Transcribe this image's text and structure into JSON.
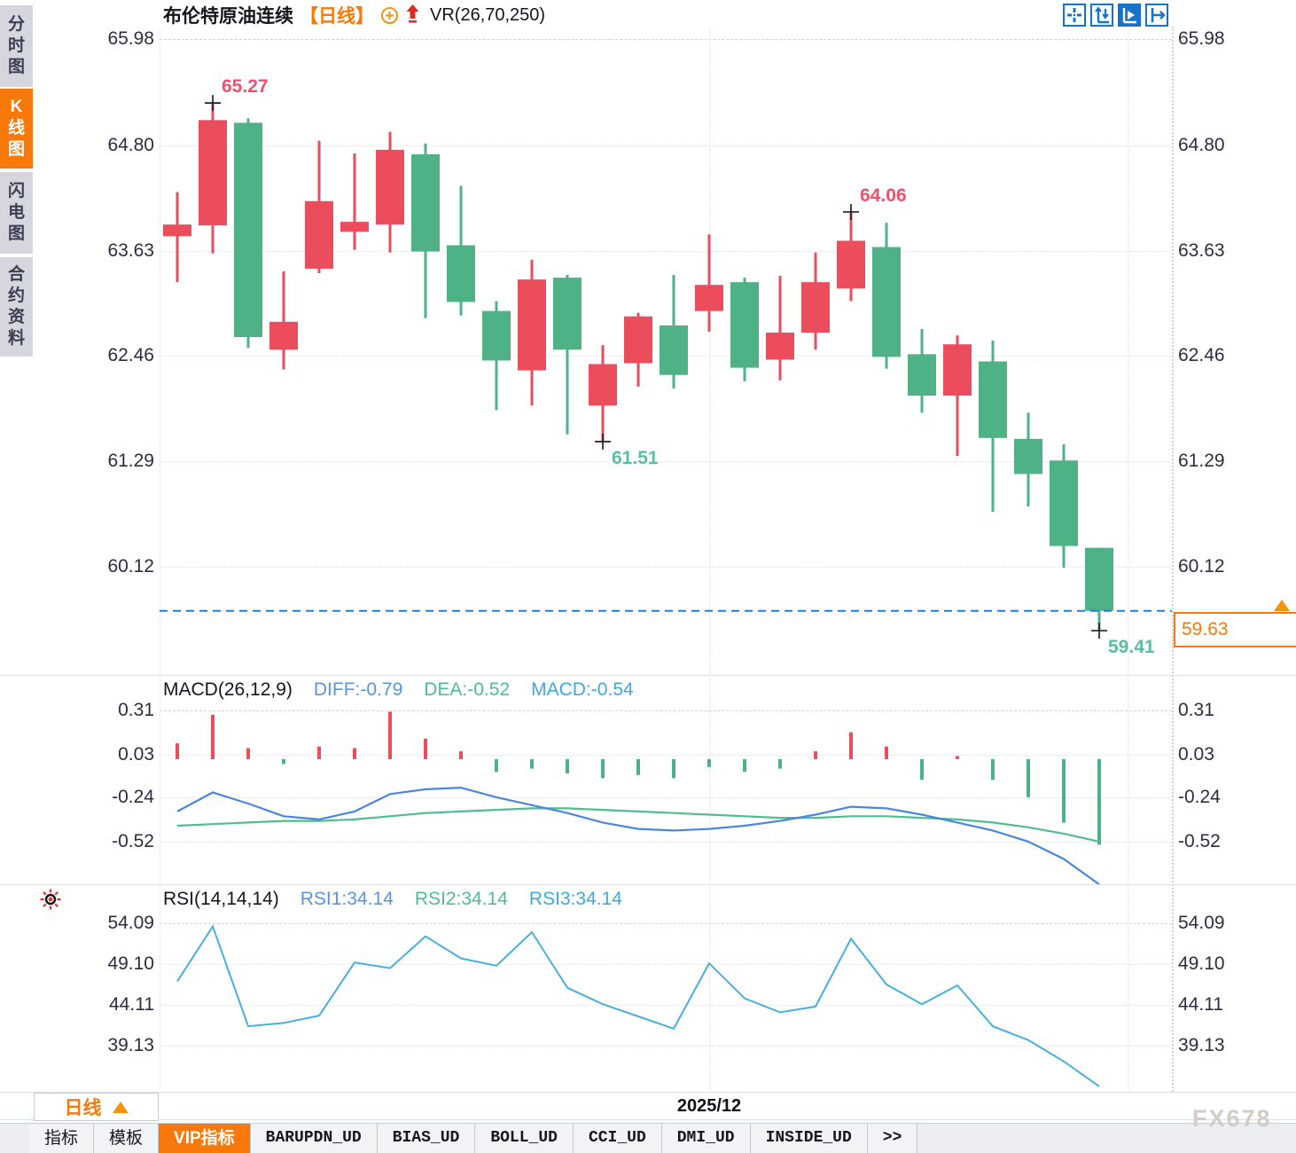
{
  "colors": {
    "up": "#ec4d5d",
    "down": "#4fb286",
    "accent": "#f8790a",
    "diff_blue": "#4a86e0",
    "dea_green": "#4fbe8c",
    "rsi_cyan": "#45b0e0",
    "price_line": "#1e7ce8",
    "anno_up": "#f0506c",
    "anno_down": "#55c0a4",
    "axis_text": "#2c2c42"
  },
  "sidebar": {
    "items": [
      {
        "label": "分时图",
        "active": false
      },
      {
        "label": "K线图",
        "active": true
      },
      {
        "label": "闪电图",
        "active": false
      },
      {
        "label": "合约资料",
        "active": false
      }
    ]
  },
  "header": {
    "symbol": "布伦特原油连续",
    "period_tag": "【日线】",
    "vr_label": "VR(26,70,250)"
  },
  "price_line": {
    "value": 59.63,
    "label": "59.63"
  },
  "annotations": [
    {
      "text": "65.27",
      "candle": 1,
      "price": 65.27,
      "placement": "above",
      "tone": "up"
    },
    {
      "text": "61.51",
      "candle": 12,
      "price": 61.51,
      "placement": "below",
      "tone": "down"
    },
    {
      "text": "64.06",
      "candle": 19,
      "price": 64.06,
      "placement": "above",
      "tone": "up"
    },
    {
      "text": "59.41",
      "candle": 26,
      "price": 59.41,
      "placement": "below",
      "tone": "down"
    }
  ],
  "macd_panel": {
    "title": "MACD(26,12,9)",
    "diff_label": "DIFF:-0.79",
    "dea_label": "DEA:-0.52",
    "macd_label": "MACD:-0.54"
  },
  "rsi_panel": {
    "title": "RSI(14,14,14)",
    "rsi1_label": "RSI1:34.14",
    "rsi2_label": "RSI2:34.14",
    "rsi3_label": "RSI3:34.14"
  },
  "footer": {
    "period_selector": "日线",
    "date_tick": "2025/12",
    "watermark": "FX678"
  },
  "bottom_tabs": [
    {
      "label": "指标",
      "active": false,
      "mono": false
    },
    {
      "label": "模板",
      "active": false,
      "mono": false
    },
    {
      "label": "VIP指标",
      "active": true,
      "mono": false
    },
    {
      "label": "BARUPDN_UD",
      "active": false,
      "mono": true
    },
    {
      "label": "BIAS_UD",
      "active": false,
      "mono": true
    },
    {
      "label": "BOLL_UD",
      "active": false,
      "mono": true
    },
    {
      "label": "CCI_UD",
      "active": false,
      "mono": true
    },
    {
      "label": "DMI_UD",
      "active": false,
      "mono": true
    },
    {
      "label": "INSIDE_UD",
      "active": false,
      "mono": true
    },
    {
      "label": ">>",
      "active": false,
      "mono": true
    }
  ],
  "chart_data": {
    "type": "candlestick",
    "title": "布伦特原油连续 日线",
    "convention": "red = up candle, green = down candle (Chinese market colors)",
    "x_tick": {
      "label": "2025/12",
      "candle_index": 15
    },
    "main_axis": [
      {
        "t": "65.98",
        "v": 65.98
      },
      {
        "t": "64.80",
        "v": 64.8
      },
      {
        "t": "63.63",
        "v": 63.63
      },
      {
        "t": "62.46",
        "v": 62.46
      },
      {
        "t": "61.29",
        "v": 61.29
      },
      {
        "t": "60.12",
        "v": 60.12
      }
    ],
    "candles": {
      "open": [
        63.79,
        63.91,
        65.05,
        62.53,
        63.43,
        63.84,
        63.92,
        64.7,
        63.69,
        62.96,
        62.3,
        63.33,
        61.91,
        62.38,
        62.8,
        62.96,
        63.28,
        62.42,
        62.72,
        63.21,
        63.67,
        62.48,
        62.02,
        62.4,
        61.54,
        61.3,
        60.33
      ],
      "high": [
        64.28,
        65.27,
        65.1,
        63.4,
        64.85,
        64.71,
        64.95,
        64.82,
        64.35,
        63.07,
        63.53,
        63.36,
        62.58,
        62.94,
        63.36,
        63.81,
        63.33,
        63.35,
        63.61,
        64.06,
        63.94,
        62.76,
        62.69,
        62.63,
        61.83,
        61.48,
        60.33
      ],
      "low": [
        63.28,
        63.6,
        62.55,
        62.31,
        63.38,
        63.64,
        63.61,
        62.88,
        62.91,
        61.86,
        61.91,
        61.59,
        61.51,
        62.12,
        62.1,
        62.73,
        62.18,
        62.19,
        62.53,
        63.07,
        62.32,
        61.83,
        61.35,
        60.73,
        60.79,
        60.11,
        59.41
      ],
      "close": [
        63.92,
        65.08,
        62.67,
        62.84,
        64.18,
        63.95,
        64.75,
        63.62,
        63.06,
        62.41,
        63.31,
        62.53,
        62.37,
        62.9,
        62.25,
        63.25,
        62.33,
        62.72,
        63.28,
        63.74,
        62.45,
        62.02,
        62.59,
        61.55,
        61.15,
        60.35,
        59.63
      ]
    },
    "macd": {
      "axis": [
        {
          "t": "0.31",
          "v": 0.31
        },
        {
          "t": "0.03",
          "v": 0.03
        },
        {
          "t": "-0.24",
          "v": -0.24
        },
        {
          "t": "-0.52",
          "v": -0.52
        }
      ],
      "hist": [
        0.1,
        0.28,
        0.07,
        -0.03,
        0.08,
        0.07,
        0.3,
        0.13,
        0.05,
        -0.08,
        -0.06,
        -0.09,
        -0.12,
        -0.1,
        -0.12,
        -0.05,
        -0.08,
        -0.06,
        0.05,
        0.17,
        0.08,
        -0.13,
        0.02,
        -0.13,
        -0.24,
        -0.4,
        -0.54
      ],
      "diff": [
        -0.33,
        -0.21,
        -0.28,
        -0.36,
        -0.38,
        -0.33,
        -0.22,
        -0.19,
        -0.18,
        -0.24,
        -0.29,
        -0.34,
        -0.4,
        -0.44,
        -0.45,
        -0.44,
        -0.42,
        -0.39,
        -0.35,
        -0.3,
        -0.31,
        -0.35,
        -0.4,
        -0.45,
        -0.52,
        -0.63,
        -0.79
      ],
      "dea": [
        -0.42,
        -0.41,
        -0.4,
        -0.39,
        -0.39,
        -0.38,
        -0.36,
        -0.34,
        -0.33,
        -0.32,
        -0.31,
        -0.31,
        -0.32,
        -0.33,
        -0.34,
        -0.35,
        -0.36,
        -0.37,
        -0.37,
        -0.36,
        -0.36,
        -0.37,
        -0.38,
        -0.4,
        -0.43,
        -0.47,
        -0.52
      ]
    },
    "rsi": {
      "axis": [
        {
          "t": "54.09",
          "v": 54.09
        },
        {
          "t": "49.10",
          "v": 49.1
        },
        {
          "t": "44.11",
          "v": 44.11
        },
        {
          "t": "39.13",
          "v": 39.13
        }
      ],
      "series": [
        47.0,
        53.7,
        41.5,
        41.9,
        42.8,
        49.3,
        48.6,
        52.5,
        49.8,
        48.9,
        53.0,
        46.2,
        44.2,
        42.7,
        41.2,
        49.2,
        44.9,
        43.2,
        43.9,
        52.2,
        46.6,
        44.2,
        46.5,
        41.5,
        39.8,
        37.2,
        34.14
      ]
    }
  }
}
